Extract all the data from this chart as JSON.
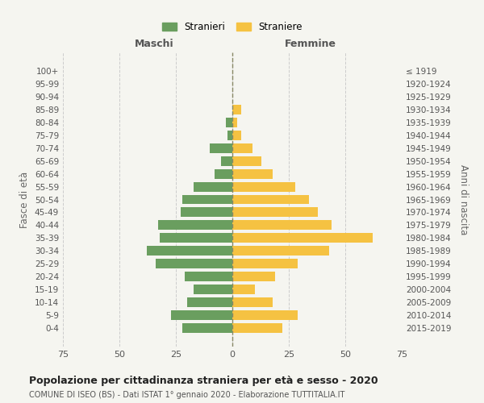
{
  "age_groups": [
    "100+",
    "95-99",
    "90-94",
    "85-89",
    "80-84",
    "75-79",
    "70-74",
    "65-69",
    "60-64",
    "55-59",
    "50-54",
    "45-49",
    "40-44",
    "35-39",
    "30-34",
    "25-29",
    "20-24",
    "15-19",
    "10-14",
    "5-9",
    "0-4"
  ],
  "birth_years": [
    "≤ 1919",
    "1920-1924",
    "1925-1929",
    "1930-1934",
    "1935-1939",
    "1940-1944",
    "1945-1949",
    "1950-1954",
    "1955-1959",
    "1960-1964",
    "1965-1969",
    "1970-1974",
    "1975-1979",
    "1980-1984",
    "1985-1989",
    "1990-1994",
    "1995-1999",
    "2000-2004",
    "2005-2009",
    "2010-2014",
    "2015-2019"
  ],
  "maschi": [
    0,
    0,
    0,
    0,
    3,
    2,
    10,
    5,
    8,
    17,
    22,
    23,
    33,
    32,
    38,
    34,
    21,
    17,
    20,
    27,
    22
  ],
  "femmine": [
    0,
    0,
    0,
    4,
    2,
    4,
    9,
    13,
    18,
    28,
    34,
    38,
    44,
    62,
    43,
    29,
    19,
    10,
    18,
    29,
    22
  ],
  "color_maschi": "#6a9e5f",
  "color_femmine": "#f5c242",
  "title": "Popolazione per cittadinanza straniera per età e sesso - 2020",
  "subtitle": "COMUNE DI ISEO (BS) - Dati ISTAT 1° gennaio 2020 - Elaborazione TUTTITALIA.IT",
  "ylabel_left": "Fasce di età",
  "ylabel_right": "Anni di nascita",
  "header_left": "Maschi",
  "header_right": "Femmine",
  "legend_maschi": "Stranieri",
  "legend_femmine": "Straniere",
  "xlim": 75,
  "background_color": "#f5f5f0",
  "grid_color": "#cccccc",
  "dashed_line_color": "#888866"
}
